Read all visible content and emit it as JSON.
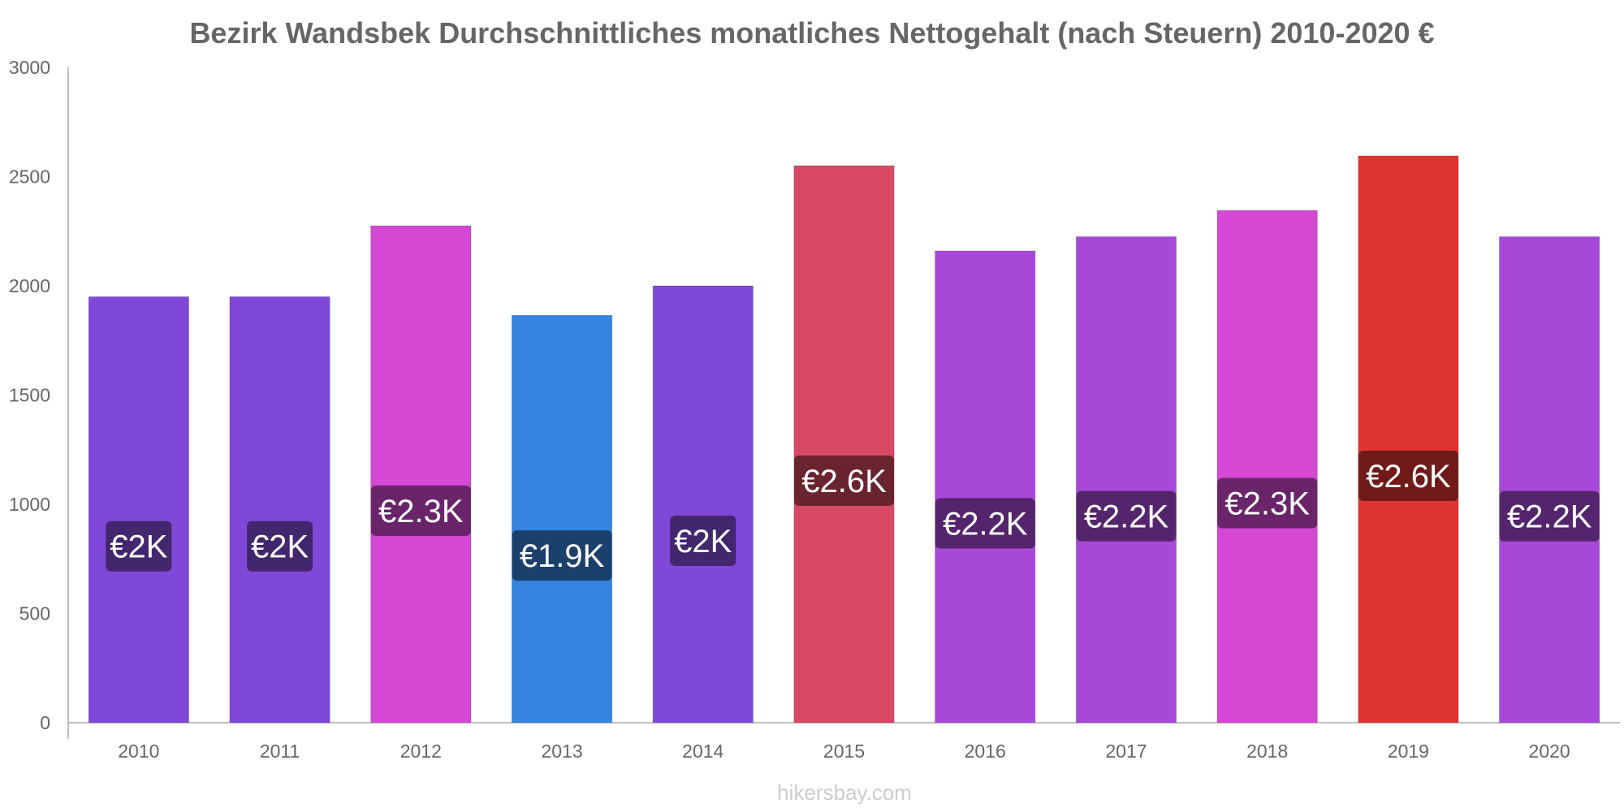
{
  "chart_data": {
    "type": "bar",
    "title": "Bezirk Wandsbek Durchschnittliches monatliches Nettogehalt (nach Steuern) 2010-2020 €",
    "categories": [
      "2010",
      "2011",
      "2012",
      "2013",
      "2014",
      "2015",
      "2016",
      "2017",
      "2018",
      "2019",
      "2020"
    ],
    "values": [
      1950,
      1950,
      2275,
      1865,
      2000,
      2550,
      2160,
      2225,
      2345,
      2595,
      2225
    ],
    "value_labels": [
      "€2K",
      "€2K",
      "€2.3K",
      "€1.9K",
      "€2K",
      "€2.6K",
      "€2.2K",
      "€2.2K",
      "€2.3K",
      "€2.6K",
      "€2.2K"
    ],
    "bar_colors": [
      "#8048d8",
      "#8048d8",
      "#d448d4",
      "#3584e0",
      "#8048d8",
      "#d64864",
      "#a848d8",
      "#a848d8",
      "#d448d4",
      "#e03434",
      "#a848d8"
    ],
    "label_bg_colors": [
      "#42266e",
      "#42266e",
      "#6a246a",
      "#1c406c",
      "#42266e",
      "#6a2430",
      "#54246c",
      "#54246c",
      "#6a246a",
      "#701a1a",
      "#54246c"
    ],
    "ylim": [
      0,
      3000
    ],
    "yticks": [
      0,
      500,
      1000,
      1500,
      2000,
      2500,
      3000
    ],
    "xlabel": "",
    "ylabel": "",
    "grid": false,
    "legend": "none"
  },
  "credit": "hikersbay.com"
}
